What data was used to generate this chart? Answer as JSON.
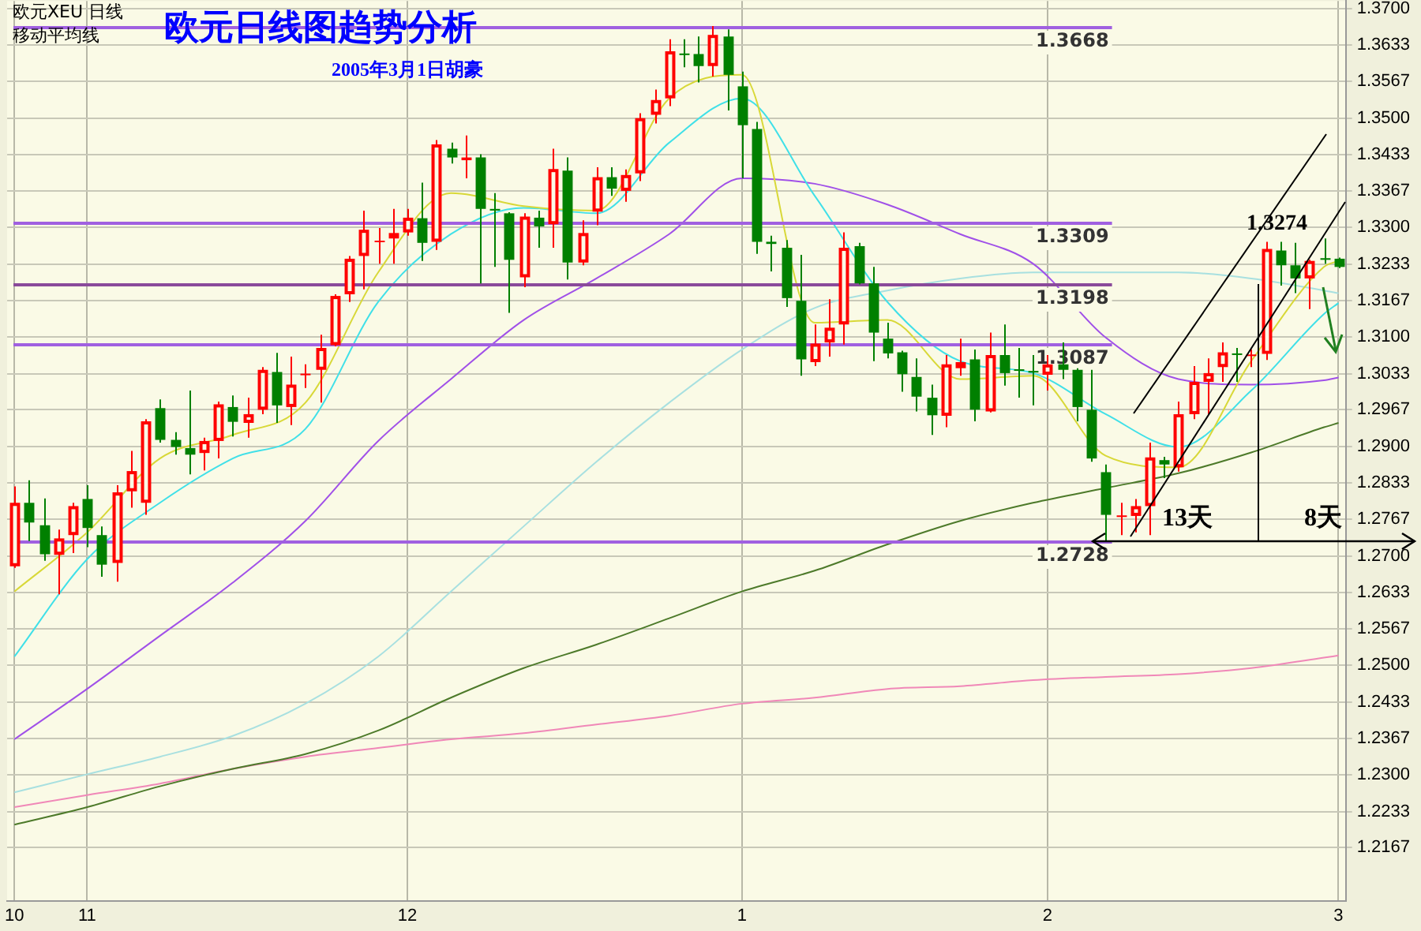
{
  "chart_data": {
    "type": "candlestick",
    "title": "欧元日线图趋势分析",
    "subtitle": "2005年3月1日胡豪",
    "categories": [
      "10",
      null,
      null,
      null,
      null,
      "11",
      null,
      null,
      null,
      null,
      null,
      null,
      null,
      null,
      null,
      null,
      null,
      null,
      null,
      null,
      null,
      null,
      null,
      null,
      null,
      null,
      null,
      "12",
      null,
      null,
      null,
      null,
      null,
      null,
      null,
      null,
      null,
      null,
      null,
      null,
      null,
      null,
      null,
      null,
      null,
      null,
      null,
      null,
      null,
      null,
      "1",
      null,
      null,
      null,
      null,
      null,
      null,
      null,
      null,
      null,
      null,
      null,
      null,
      null,
      null,
      null,
      null,
      null,
      null,
      null,
      null,
      "2",
      null,
      null,
      null,
      null,
      null,
      null,
      null,
      null,
      null,
      null,
      null,
      null,
      null,
      null,
      null,
      null,
      null,
      null,
      null,
      "3"
    ],
    "ohlc": [
      [
        1.2681,
        1.2827,
        1.2678,
        1.2797
      ],
      [
        1.2797,
        1.2838,
        1.2727,
        1.2761
      ],
      [
        1.2756,
        1.2805,
        1.2691,
        1.2703
      ],
      [
        1.2702,
        1.2748,
        1.263,
        1.2732
      ],
      [
        1.2738,
        1.2797,
        1.2705,
        1.2791
      ],
      [
        1.2804,
        1.2829,
        1.2716,
        1.2751
      ],
      [
        1.2738,
        1.2754,
        1.2662,
        1.2684
      ],
      [
        1.2687,
        1.2829,
        1.2653,
        1.2816
      ],
      [
        1.2818,
        1.2892,
        1.2788,
        1.2855
      ],
      [
        1.2797,
        1.295,
        1.2775,
        1.2946
      ],
      [
        1.297,
        1.2986,
        1.2907,
        1.2912
      ],
      [
        1.2912,
        1.2926,
        1.2885,
        1.2899
      ],
      [
        1.2897,
        1.3002,
        1.2849,
        1.2885
      ],
      [
        1.2888,
        1.2916,
        1.2856,
        1.291
      ],
      [
        1.291,
        1.2982,
        1.2878,
        1.2977
      ],
      [
        1.2972,
        1.2993,
        1.2918,
        1.2945
      ],
      [
        1.2943,
        1.2989,
        1.2916,
        1.2959
      ],
      [
        1.2967,
        1.3045,
        1.2959,
        1.304
      ],
      [
        1.3036,
        1.3071,
        1.2943,
        1.2975
      ],
      [
        1.2972,
        1.3064,
        1.2939,
        1.3013
      ],
      [
        1.3031,
        1.305,
        1.3007,
        1.3033
      ],
      [
        1.304,
        1.3104,
        1.298,
        1.308
      ],
      [
        1.3085,
        1.3178,
        1.3083,
        1.3175
      ],
      [
        1.3178,
        1.3248,
        1.3164,
        1.3243
      ],
      [
        1.3248,
        1.3331,
        1.3187,
        1.3296
      ],
      [
        1.3274,
        1.3299,
        1.3234,
        1.3276
      ],
      [
        1.328,
        1.3334,
        1.3234,
        1.329
      ],
      [
        1.3291,
        1.3334,
        1.3285,
        1.3318
      ],
      [
        1.3317,
        1.3382,
        1.3239,
        1.3272
      ],
      [
        1.3274,
        1.346,
        1.3259,
        1.3452
      ],
      [
        1.3444,
        1.3455,
        1.3417,
        1.3428
      ],
      [
        1.3423,
        1.3468,
        1.339,
        1.3428
      ],
      [
        1.3428,
        1.3434,
        1.3198,
        1.3334
      ],
      [
        1.3334,
        1.3363,
        1.3228,
        1.3331
      ],
      [
        1.3326,
        1.3328,
        1.3144,
        1.3241
      ],
      [
        1.3209,
        1.3326,
        1.3191,
        1.332
      ],
      [
        1.3318,
        1.3331,
        1.3263,
        1.3302
      ],
      [
        1.3306,
        1.3444,
        1.3263,
        1.3407
      ],
      [
        1.3404,
        1.3428,
        1.3205,
        1.3236
      ],
      [
        1.3236,
        1.3313,
        1.3231,
        1.329
      ],
      [
        1.3329,
        1.341,
        1.3304,
        1.3392
      ],
      [
        1.3392,
        1.341,
        1.3358,
        1.3371
      ],
      [
        1.3367,
        1.3406,
        1.3347,
        1.3396
      ],
      [
        1.3399,
        1.3509,
        1.3385,
        1.35
      ],
      [
        1.3506,
        1.3552,
        1.349,
        1.3533
      ],
      [
        1.3536,
        1.3644,
        1.3522,
        1.3622
      ],
      [
        1.3618,
        1.3644,
        1.3593,
        1.3616
      ],
      [
        1.3617,
        1.3649,
        1.3565,
        1.3595
      ],
      [
        1.3595,
        1.3668,
        1.3576,
        1.3652
      ],
      [
        1.3649,
        1.3662,
        1.3514,
        1.3579
      ],
      [
        1.3558,
        1.3585,
        1.339,
        1.3487
      ],
      [
        1.348,
        1.3493,
        1.3252,
        1.3274
      ],
      [
        1.3274,
        1.3285,
        1.322,
        1.327
      ],
      [
        1.3263,
        1.3277,
        1.3155,
        1.3171
      ],
      [
        1.3166,
        1.325,
        1.3029,
        1.3059
      ],
      [
        1.3054,
        1.3123,
        1.3047,
        1.3088
      ],
      [
        1.309,
        1.3169,
        1.3064,
        1.3117
      ],
      [
        1.3123,
        1.3291,
        1.3086,
        1.3263
      ],
      [
        1.3266,
        1.3272,
        1.3196,
        1.3198
      ],
      [
        1.3198,
        1.3228,
        1.3056,
        1.3108
      ],
      [
        1.3097,
        1.3126,
        1.3061,
        1.307
      ],
      [
        1.3072,
        1.3075,
        1.3,
        1.3032
      ],
      [
        1.3027,
        1.3061,
        1.2964,
        1.2991
      ],
      [
        1.2989,
        1.3013,
        1.2921,
        1.2957
      ],
      [
        1.2956,
        1.3067,
        1.2935,
        1.305
      ],
      [
        1.3043,
        1.3097,
        1.3029,
        1.3054
      ],
      [
        1.3059,
        1.3077,
        1.2946,
        1.2967
      ],
      [
        1.2964,
        1.3108,
        1.2962,
        1.3067
      ],
      [
        1.3067,
        1.3123,
        1.3011,
        1.3034
      ],
      [
        1.3041,
        1.308,
        1.2989,
        1.3039
      ],
      [
        1.3038,
        1.3067,
        1.2975,
        1.3035
      ],
      [
        1.3031,
        1.3067,
        1.3002,
        1.305
      ],
      [
        1.305,
        1.309,
        1.3023,
        1.304
      ],
      [
        1.304,
        1.3043,
        1.2946,
        1.2972
      ],
      [
        1.2967,
        1.304,
        1.2872,
        1.2878
      ],
      [
        1.2853,
        1.2867,
        1.2728,
        1.2775
      ],
      [
        1.2772,
        1.2797,
        1.2738,
        1.2774
      ],
      [
        1.2773,
        1.2804,
        1.2743,
        1.2791
      ],
      [
        1.2791,
        1.2907,
        1.2738,
        1.288
      ],
      [
        1.2875,
        1.2881,
        1.2842,
        1.2867
      ],
      [
        1.2862,
        1.2982,
        1.2854,
        1.2959
      ],
      [
        1.2959,
        1.3047,
        1.295,
        1.3018
      ],
      [
        1.3018,
        1.3061,
        1.2959,
        1.3034
      ],
      [
        1.3045,
        1.309,
        1.3018,
        1.3072
      ],
      [
        1.307,
        1.308,
        1.3018,
        1.3068
      ],
      [
        1.3066,
        1.3077,
        1.3045,
        1.3068
      ],
      [
        1.3069,
        1.3274,
        1.3058,
        1.3261
      ],
      [
        1.3258,
        1.3274,
        1.3194,
        1.3231
      ],
      [
        1.3231,
        1.3272,
        1.318,
        1.3207
      ],
      [
        1.3207,
        1.3241,
        1.3151,
        1.3239
      ],
      [
        1.3244,
        1.328,
        1.3234,
        1.3241
      ],
      [
        1.3243,
        1.3245,
        1.3226,
        1.3228
      ]
    ],
    "colors": [
      "#ff0000",
      "#008000",
      "#008000",
      "#ff0000",
      "#ff0000",
      "#008000",
      "#008000",
      "#ff0000",
      "#ff0000",
      "#ff0000",
      "#008000",
      "#008000",
      "#008000",
      "#ff0000",
      "#ff0000",
      "#008000",
      "#ff0000",
      "#ff0000",
      "#008000",
      "#ff0000",
      "#ff0000",
      "#ff0000",
      "#ff0000",
      "#ff0000",
      "#ff0000",
      "#ff0000",
      "#ff0000",
      "#ff0000",
      "#008000",
      "#ff0000",
      "#008000",
      "#ff0000",
      "#008000",
      "#008000",
      "#008000",
      "#ff0000",
      "#008000",
      "#ff0000",
      "#008000",
      "#ff0000",
      "#ff0000",
      "#008000",
      "#ff0000",
      "#ff0000",
      "#ff0000",
      "#ff0000",
      "#008000",
      "#008000",
      "#ff0000",
      "#008000",
      "#008000",
      "#008000",
      "#008000",
      "#008000",
      "#008000",
      "#ff0000",
      "#ff0000",
      "#ff0000",
      "#008000",
      "#008000",
      "#008000",
      "#008000",
      "#008000",
      "#008000",
      "#ff0000",
      "#ff0000",
      "#008000",
      "#ff0000",
      "#008000",
      "#008000",
      "#008000",
      "#ff0000",
      "#008000",
      "#008000",
      "#008000",
      "#008000",
      "#ff0000",
      "#ff0000",
      "#ff0000",
      "#008000",
      "#ff0000",
      "#ff0000",
      "#ff0000",
      "#ff0000",
      "#008000",
      "#ff0000",
      "#ff0000",
      "#008000",
      "#008000",
      "#ff0000",
      "#008000",
      "#008000"
    ],
    "series": [
      {
        "type": "line",
        "color": "#d8d838",
        "values": [
          1.2635,
          null,
          null,
          null,
          null,
          1.2743,
          null,
          null,
          null,
          null,
          1.2878,
          null,
          null,
          null,
          null,
          1.2921,
          null,
          null,
          null,
          null,
          1.298,
          null,
          null,
          null,
          null,
          1.3218,
          null,
          null,
          null,
          null,
          1.3363,
          null,
          null,
          null,
          null,
          1.3339,
          null,
          null,
          null,
          null,
          1.3331,
          null,
          null,
          null,
          null,
          1.3536,
          null,
          null,
          null,
          null,
          1.3579,
          null,
          null,
          null,
          null,
          1.3126,
          null,
          null,
          null,
          null,
          1.3131,
          null,
          null,
          null,
          null,
          1.3023,
          null,
          null,
          null,
          null,
          1.3029,
          null,
          null,
          null,
          null,
          1.2883,
          null,
          null,
          null,
          null,
          1.2862,
          null,
          null,
          null,
          null,
          1.3056,
          null,
          null,
          null,
          null,
          1.3228,
          1.3239
        ]
      },
      {
        "type": "line",
        "color": "#40e0e8",
        "values": [
          1.2516,
          null,
          null,
          null,
          null,
          1.2694,
          null,
          null,
          null,
          null,
          1.2797,
          null,
          null,
          null,
          null,
          1.2878,
          null,
          null,
          null,
          null,
          1.2932,
          null,
          null,
          null,
          null,
          1.3164,
          null,
          null,
          null,
          null,
          1.3288,
          null,
          null,
          null,
          null,
          1.3336,
          null,
          null,
          null,
          null,
          1.3326,
          null,
          null,
          null,
          null,
          1.3455,
          null,
          null,
          null,
          null,
          1.3536,
          null,
          null,
          null,
          null,
          1.3358,
          null,
          null,
          null,
          null,
          1.3164,
          null,
          null,
          null,
          null,
          1.3056,
          null,
          null,
          null,
          null,
          1.3034,
          null,
          null,
          null,
          null,
          1.2959,
          null,
          null,
          null,
          null,
          1.2899,
          null,
          null,
          null,
          null,
          1.3002,
          null,
          null,
          null,
          null,
          1.3142,
          1.3162
        ]
      },
      {
        "type": "line",
        "color": "#a050e8",
        "values": [
          1.2365,
          null,
          null,
          null,
          null,
          1.2457,
          null,
          null,
          null,
          null,
          1.2554,
          null,
          null,
          null,
          null,
          1.2651,
          null,
          null,
          null,
          null,
          1.2764,
          null,
          null,
          null,
          null,
          1.291,
          null,
          null,
          null,
          null,
          1.3023,
          null,
          null,
          null,
          null,
          1.3131,
          null,
          null,
          null,
          null,
          1.3207,
          null,
          null,
          null,
          null,
          1.3288,
          null,
          null,
          null,
          null,
          1.339,
          null,
          null,
          null,
          null,
          1.338,
          null,
          null,
          null,
          null,
          1.3342,
          null,
          null,
          null,
          null,
          1.3288,
          null,
          null,
          null,
          null,
          1.3234,
          null,
          null,
          null,
          null,
          1.3099,
          null,
          null,
          null,
          null,
          1.3023,
          null,
          null,
          null,
          null,
          1.3013,
          null,
          null,
          null,
          null,
          1.3021,
          1.3026
        ]
      },
      {
        "type": "line",
        "color": "#a8e0e0",
        "values": [
          1.2268,
          null,
          null,
          null,
          null,
          1.2301,
          null,
          null,
          null,
          null,
          1.2333,
          null,
          null,
          null,
          null,
          1.2371,
          null,
          null,
          null,
          null,
          1.243,
          null,
          null,
          null,
          null,
          1.2516,
          null,
          null,
          null,
          null,
          1.2635,
          null,
          null,
          null,
          null,
          1.2754,
          null,
          null,
          null,
          null,
          1.2872,
          null,
          null,
          null,
          null,
          1.298,
          null,
          null,
          null,
          null,
          1.3077,
          null,
          null,
          null,
          null,
          1.3153,
          null,
          null,
          null,
          null,
          1.3185,
          null,
          null,
          null,
          null,
          1.3207,
          null,
          null,
          null,
          null,
          1.3218,
          null,
          null,
          null,
          null,
          1.3218,
          null,
          null,
          null,
          null,
          1.3218,
          null,
          null,
          null,
          null,
          1.3207,
          null,
          null,
          null,
          null,
          1.3185,
          1.318
        ]
      },
      {
        "type": "line",
        "color": "#4d7a2a",
        "values": [
          1.2209,
          null,
          null,
          null,
          null,
          1.2241,
          null,
          null,
          null,
          null,
          1.2279,
          null,
          null,
          null,
          null,
          1.2311,
          null,
          null,
          null,
          null,
          1.2338,
          null,
          null,
          null,
          null,
          1.2381,
          null,
          null,
          null,
          null,
          1.2441,
          null,
          null,
          null,
          null,
          1.2495,
          null,
          null,
          null,
          null,
          1.2538,
          null,
          null,
          null,
          null,
          1.2586,
          null,
          null,
          null,
          null,
          1.2635,
          null,
          null,
          null,
          null,
          1.2673,
          null,
          null,
          null,
          null,
          1.2721,
          null,
          null,
          null,
          null,
          1.2764,
          null,
          null,
          null,
          null,
          1.2797,
          null,
          null,
          null,
          null,
          1.2824,
          null,
          null,
          null,
          null,
          1.2851,
          null,
          null,
          null,
          null,
          1.2889,
          null,
          null,
          null,
          null,
          1.2935,
          1.2943
        ]
      },
      {
        "type": "line",
        "color": "#f088b8",
        "values": [
          1.2241,
          null,
          null,
          null,
          null,
          1.2263,
          null,
          null,
          null,
          null,
          1.2284,
          null,
          null,
          null,
          null,
          1.2311,
          null,
          null,
          null,
          null,
          1.2333,
          null,
          null,
          null,
          null,
          1.2349,
          null,
          null,
          null,
          null,
          1.2365,
          null,
          null,
          null,
          null,
          1.2376,
          null,
          null,
          null,
          null,
          1.2392,
          null,
          null,
          null,
          null,
          1.2408,
          null,
          null,
          null,
          null,
          1.243,
          null,
          null,
          null,
          null,
          1.2441,
          null,
          null,
          null,
          null,
          1.2457,
          null,
          null,
          null,
          null,
          1.2462,
          null,
          null,
          null,
          null,
          1.2473,
          null,
          null,
          null,
          null,
          1.2479,
          null,
          null,
          null,
          null,
          1.2484,
          null,
          null,
          null,
          null,
          1.2495,
          null,
          null,
          null,
          null,
          1.2514,
          1.2518
        ]
      }
    ],
    "ylim": [
      1.207,
      1.3714
    ],
    "yticks": [
      {
        "value": 1.37,
        "label": "1.3700"
      },
      1.3633,
      1.3567,
      {
        "value": 1.35,
        "label": "1.3500"
      },
      1.3433,
      1.3367,
      {
        "value": 1.33,
        "label": "1.3300"
      },
      1.3233,
      1.3167,
      {
        "value": 1.31,
        "label": "1.3100"
      },
      1.3033,
      1.2967,
      {
        "value": 1.29,
        "label": "1.2900"
      },
      1.2833,
      1.2767,
      {
        "value": 1.27,
        "label": "1.2700"
      },
      1.2633,
      1.2567,
      {
        "value": 1.25,
        "label": "1.2500"
      },
      1.2433,
      1.2367,
      {
        "value": 1.23,
        "label": "1.2300"
      },
      1.2233,
      1.2167
    ],
    "grid": true,
    "ref_lines": [
      {
        "axis": "y",
        "value": 1.3668,
        "label": "1.3668",
        "color": "#a060e0"
      },
      {
        "axis": "y",
        "value": 1.3309,
        "label": "1.3309",
        "color": "#a060e0"
      },
      {
        "axis": "y",
        "value": 1.3198,
        "label": "1.3198",
        "color": "#8a4a9a"
      },
      {
        "axis": "y",
        "value": 1.3087,
        "label": "1.3087",
        "color": "#a060e0"
      },
      {
        "axis": "y",
        "value": 1.2728,
        "label": "1.2728",
        "color": "#a060e0"
      }
    ],
    "annotations": [
      "欧元XEU 日线",
      "移动平均线",
      "1.3274",
      "13天",
      "8天"
    ]
  }
}
